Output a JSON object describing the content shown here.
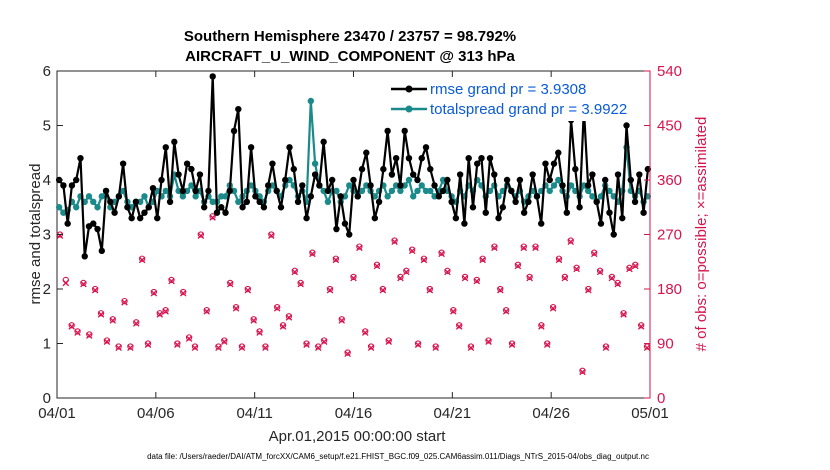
{
  "chart_data": {
    "type": "line",
    "title_line1": "Southern Hemisphere 23470 / 23757 = 98.792%",
    "title_line2": "AIRCRAFT_U_WIND_COMPONENT @ 313 hPa",
    "xlabel": "Apr.01,2015 00:00:00 start",
    "ylabel_left": "rmse and totalspread",
    "ylabel_right": "# of obs: o=possible; ×=assimilated",
    "footer": "data file: /Users/raeder/DAI/ATM_forcXX/CAM6_setup/f.e21.FHIST_BGC.f09_025.CAM6assim.011/Diags_NTrS_2015-04/obs_diag_output.nc",
    "x_range_days": [
      0,
      30
    ],
    "ylim_left": [
      0,
      6
    ],
    "ylim_right": [
      0,
      540
    ],
    "x_ticks": [
      {
        "value": 0,
        "label": "04/01"
      },
      {
        "value": 5,
        "label": "04/06"
      },
      {
        "value": 10,
        "label": "04/11"
      },
      {
        "value": 15,
        "label": "04/16"
      },
      {
        "value": 20,
        "label": "04/21"
      },
      {
        "value": 25,
        "label": "04/26"
      },
      {
        "value": 30,
        "label": "05/01"
      }
    ],
    "y_left_ticks": [
      {
        "value": 0,
        "label": "0"
      },
      {
        "value": 1,
        "label": "1"
      },
      {
        "value": 2,
        "label": "2"
      },
      {
        "value": 3,
        "label": "3"
      },
      {
        "value": 4,
        "label": "4"
      },
      {
        "value": 5,
        "label": "5"
      },
      {
        "value": 6,
        "label": "6"
      }
    ],
    "y_right_ticks": [
      {
        "value": 0,
        "label": "0"
      },
      {
        "value": 90,
        "label": "90"
      },
      {
        "value": 180,
        "label": "180"
      },
      {
        "value": 270,
        "label": "270"
      },
      {
        "value": 360,
        "label": "360"
      },
      {
        "value": 450,
        "label": "450"
      },
      {
        "value": 540,
        "label": "540"
      }
    ],
    "series": [
      {
        "name": "rmse",
        "legend_label": "rmse grand pr = 3.9308",
        "color": "#000000",
        "values": [
          4.0,
          3.9,
          3.2,
          3.9,
          4.0,
          4.4,
          2.6,
          3.15,
          3.2,
          3.1,
          2.7,
          3.8,
          3.6,
          3.4,
          3.7,
          4.3,
          3.5,
          3.3,
          3.6,
          3.3,
          3.4,
          3.5,
          3.85,
          3.3,
          4.0,
          4.6,
          3.6,
          4.7,
          4.1,
          3.8,
          4.3,
          4.2,
          3.8,
          4.1,
          3.5,
          3.8,
          5.9,
          3.4,
          3.5,
          3.4,
          3.8,
          4.9,
          5.3,
          3.5,
          3.6,
          4.6,
          3.7,
          3.6,
          3.5,
          3.9,
          4.3,
          3.8,
          3.5,
          4.0,
          4.6,
          4.2,
          3.6,
          3.9,
          3.3,
          3.7,
          4.1,
          3.9,
          4.7,
          3.8,
          4.0,
          3.1,
          3.7,
          3.2,
          3.0,
          4.0,
          3.7,
          4.2,
          4.5,
          3.9,
          3.3,
          3.6,
          4.2,
          4.9,
          4.1,
          4.4,
          3.9,
          4.9,
          4.4,
          4.1,
          4.0,
          4.4,
          4.6,
          4.2,
          3.9,
          3.7,
          3.8,
          4.0,
          3.6,
          3.3,
          4.1,
          3.2,
          4.4,
          3.5,
          4.3,
          4.4,
          3.4,
          4.4,
          4.1,
          3.3,
          3.5,
          4.0,
          3.8,
          3.6,
          4.0,
          3.4,
          3.6,
          4.1,
          3.7,
          3.2,
          4.3,
          4.0,
          4.3,
          4.5,
          3.9,
          3.4,
          5.1,
          4.2,
          3.5,
          5.3,
          3.9,
          4.1,
          3.6,
          3.2,
          4.0,
          3.4,
          3.0,
          4.1,
          3.3,
          5.0,
          4.0,
          3.6,
          4.1,
          3.4,
          4.2
        ]
      },
      {
        "name": "totalspread",
        "legend_label": "totalspread grand pr = 3.9922",
        "color": "#1b8a8a",
        "values": [
          3.5,
          3.4,
          3.45,
          3.6,
          3.5,
          3.7,
          3.6,
          3.7,
          3.6,
          3.5,
          3.7,
          3.8,
          3.5,
          3.6,
          3.7,
          3.8,
          3.6,
          3.5,
          3.6,
          3.6,
          3.7,
          3.5,
          3.6,
          3.8,
          3.7,
          3.8,
          3.7,
          4.1,
          3.8,
          3.7,
          3.8,
          3.9,
          3.7,
          3.8,
          3.6,
          3.7,
          3.6,
          3.6,
          3.7,
          3.7,
          3.9,
          3.8,
          3.6,
          3.7,
          3.8,
          3.9,
          3.8,
          3.7,
          3.6,
          3.8,
          3.9,
          3.8,
          3.7,
          3.9,
          4.0,
          3.9,
          3.7,
          3.8,
          3.6,
          5.45,
          4.3,
          3.9,
          3.8,
          3.6,
          3.8,
          3.8,
          3.6,
          3.7,
          3.9,
          3.8,
          3.7,
          3.8,
          3.9,
          3.8,
          3.7,
          3.8,
          3.9,
          3.7,
          3.8,
          3.9,
          3.8,
          3.9,
          4.0,
          3.7,
          3.8,
          3.9,
          3.8,
          3.8,
          3.7,
          3.8,
          4.0,
          3.8,
          3.7,
          3.6,
          3.8,
          3.7,
          3.9,
          3.8,
          4.0,
          3.9,
          3.7,
          3.8,
          3.9,
          3.7,
          3.8,
          3.9,
          3.8,
          3.7,
          3.8,
          3.6,
          3.7,
          3.8,
          3.7,
          3.8,
          3.9,
          3.8,
          3.9,
          4.0,
          3.8,
          3.7,
          3.9,
          3.8,
          3.7,
          3.9,
          3.8,
          3.7,
          3.6,
          3.7,
          3.9,
          3.8,
          3.7,
          3.6,
          3.8,
          4.6,
          3.8,
          3.7,
          3.8,
          3.6,
          3.7
        ]
      }
    ],
    "obs_possible": [
      270,
      195,
      120,
      110,
      190,
      105,
      180,
      140,
      95,
      130,
      85,
      160,
      85,
      125,
      230,
      90,
      175,
      140,
      145,
      195,
      90,
      175,
      100,
      85,
      270,
      145,
      300,
      85,
      95,
      190,
      150,
      85,
      180,
      130,
      110,
      85,
      270,
      150,
      120,
      135,
      210,
      190,
      90,
      240,
      85,
      95,
      180,
      230,
      130,
      75,
      200,
      250,
      110,
      85,
      220,
      180,
      95,
      260,
      200,
      210,
      245,
      90,
      230,
      180,
      85,
      240,
      210,
      145,
      120,
      200,
      85,
      195,
      230,
      95,
      250,
      180,
      145,
      90,
      220,
      250,
      200,
      250,
      120,
      90,
      150,
      230,
      200,
      260,
      215,
      45,
      180,
      240,
      210,
      85,
      200,
      190,
      140,
      215,
      220,
      120,
      85
    ],
    "obs_assimilated": [
      268,
      190,
      118,
      108,
      188,
      103,
      178,
      138,
      93,
      128,
      83,
      158,
      83,
      123,
      228,
      88,
      173,
      138,
      143,
      193,
      88,
      173,
      98,
      83,
      268,
      143,
      298,
      83,
      93,
      188,
      148,
      83,
      178,
      128,
      108,
      83,
      268,
      148,
      118,
      133,
      208,
      188,
      88,
      238,
      83,
      93,
      178,
      228,
      128,
      73,
      198,
      248,
      108,
      83,
      218,
      178,
      93,
      258,
      198,
      208,
      243,
      88,
      228,
      178,
      83,
      238,
      208,
      143,
      118,
      198,
      83,
      193,
      228,
      93,
      248,
      178,
      143,
      88,
      218,
      248,
      198,
      248,
      118,
      88,
      148,
      228,
      198,
      258,
      213,
      43,
      178,
      238,
      208,
      83,
      198,
      188,
      138,
      213,
      218,
      118,
      83
    ]
  }
}
